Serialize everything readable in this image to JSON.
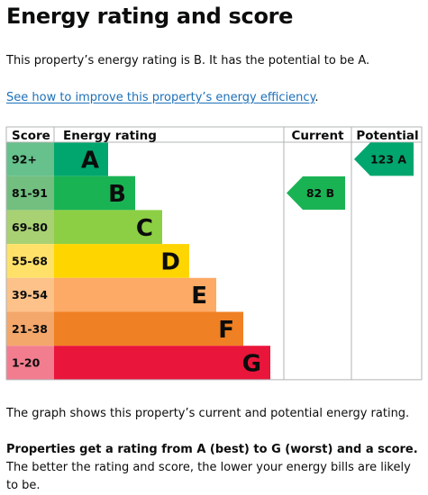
{
  "page": {
    "title": "Energy rating and score",
    "intro": "This property’s energy rating is B. It has the potential to be A.",
    "improve_link": "See how to improve this property’s energy efficiency",
    "improve_link_suffix": ".",
    "graph_caption": "The graph shows this property’s current and potential energy rating.",
    "explanation_bold": "Properties get a rating from A (best) to G (worst) and a score.",
    "explanation_rest": " The better the rating and score, the lower your energy bills are likely to be."
  },
  "chart_data": {
    "type": "bar",
    "columns": {
      "score": "Score",
      "rating": "Energy rating",
      "current": "Current",
      "potential": "Potential"
    },
    "bands": [
      {
        "range": "92+",
        "letter": "A",
        "color": "#66c18c",
        "bar_color": "#00a66d"
      },
      {
        "range": "81-91",
        "letter": "B",
        "color": "#72bf80",
        "bar_color": "#1ab354"
      },
      {
        "range": "69-80",
        "letter": "C",
        "color": "#a8d173",
        "bar_color": "#8ccf44"
      },
      {
        "range": "55-68",
        "letter": "D",
        "color": "#ffe169",
        "bar_color": "#ffd500"
      },
      {
        "range": "39-54",
        "letter": "E",
        "color": "#fcc289",
        "bar_color": "#fcaa65"
      },
      {
        "range": "21-38",
        "letter": "F",
        "color": "#f4a76b",
        "bar_color": "#ef8023"
      },
      {
        "range": "1-20",
        "letter": "G",
        "color": "#f27d8f",
        "bar_color": "#e9153b"
      }
    ],
    "current": {
      "score": 82,
      "band": "B",
      "label": "82 B",
      "color": "#1ab354"
    },
    "potential": {
      "score": 123,
      "band": "A",
      "label": "123 A",
      "color": "#00a66d"
    }
  }
}
